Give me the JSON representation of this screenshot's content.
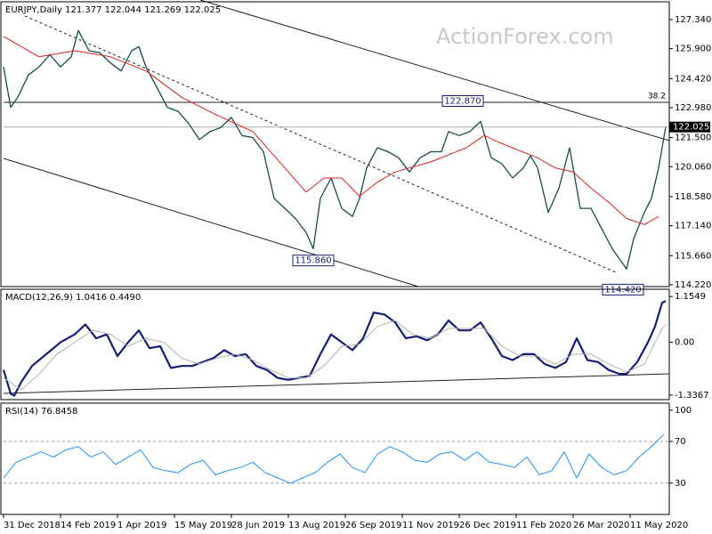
{
  "chart_data": [
    {
      "type": "line",
      "title": "EURJPY,Daily  121.377 122.044 121.269 122.025",
      "watermark": "ActionForex.com",
      "fib_label": "38.2",
      "xlim": [
        0,
        374
      ],
      "ylim": [
        114.13,
        128.22
      ],
      "yticks": [
        {
          "value": 127.34,
          "label": "127.340"
        },
        {
          "value": 125.9,
          "label": "125.900"
        },
        {
          "value": 124.42,
          "label": "124.420"
        },
        {
          "value": 122.98,
          "label": "122.980"
        },
        {
          "value": 121.5,
          "label": "121.500"
        },
        {
          "value": 120.06,
          "label": "120.060"
        },
        {
          "value": 118.58,
          "label": "118.580"
        },
        {
          "value": 117.14,
          "label": "117.140"
        },
        {
          "value": 115.66,
          "label": "115.660"
        },
        {
          "value": 114.22,
          "label": "114.220"
        }
      ],
      "last": {
        "value": 122.025,
        "label": "122.025"
      },
      "annotations": [
        {
          "x": 258,
          "value": 122.87,
          "label": "122.870",
          "pos": "above"
        },
        {
          "x": 174,
          "value": 115.86,
          "label": "115.860",
          "pos": "below"
        },
        {
          "x": 348,
          "value": 114.42,
          "label": "114.420",
          "pos": "below"
        }
      ],
      "series": [
        {
          "color": "#134d4d",
          "width": 1.3,
          "x": [
            0,
            4,
            8,
            14,
            20,
            26,
            32,
            38,
            42,
            48,
            54,
            60,
            66,
            72,
            76,
            80,
            86,
            92,
            98,
            104,
            110,
            116,
            122,
            128,
            134,
            140,
            146,
            152,
            158,
            164,
            170,
            174,
            178,
            184,
            190,
            196,
            200,
            204,
            210,
            216,
            222,
            228,
            234,
            240,
            246,
            250,
            256,
            262,
            268,
            274,
            280,
            286,
            292,
            296,
            300,
            306,
            312,
            318,
            324,
            330,
            336,
            342,
            346,
            350,
            354,
            360,
            364,
            368,
            372
          ],
          "values": [
            125.0,
            123.0,
            123.5,
            124.6,
            125.0,
            125.6,
            125.0,
            125.5,
            126.8,
            125.8,
            125.7,
            125.2,
            124.8,
            125.8,
            126.0,
            125.0,
            124.0,
            123.0,
            122.8,
            122.2,
            121.4,
            121.8,
            122.0,
            122.5,
            121.6,
            121.5,
            120.8,
            118.5,
            118.0,
            117.5,
            116.8,
            116.0,
            118.5,
            119.5,
            118.0,
            117.6,
            118.5,
            120.0,
            121.0,
            120.8,
            120.5,
            119.8,
            120.5,
            120.8,
            120.8,
            121.8,
            121.6,
            121.8,
            122.3,
            120.5,
            120.2,
            119.5,
            120.0,
            120.6,
            120.0,
            117.8,
            119.0,
            121.0,
            118.0,
            118.0,
            117.0,
            116.0,
            115.5,
            115.0,
            116.5,
            117.8,
            118.5,
            120.0,
            122.025
          ]
        },
        {
          "color": "#e0201b",
          "width": 1,
          "x": [
            0,
            20,
            40,
            60,
            80,
            100,
            120,
            140,
            160,
            170,
            180,
            190,
            200,
            210,
            220,
            240,
            260,
            270,
            280,
            300,
            310,
            320,
            330,
            340,
            350,
            360,
            368
          ],
          "values": [
            126.5,
            125.5,
            125.8,
            125.5,
            124.8,
            123.5,
            122.6,
            121.8,
            119.8,
            118.8,
            119.5,
            119.5,
            118.6,
            119.3,
            119.8,
            120.3,
            121.0,
            121.6,
            121.2,
            120.5,
            120.0,
            119.8,
            119.0,
            118.3,
            117.5,
            117.2,
            117.6
          ]
        }
      ]
    },
    {
      "type": "line",
      "title": "MACD(12,26,9) 1.0416 0.4490",
      "xlim": [
        0,
        374
      ],
      "ylim": [
        -1.45,
        1.34
      ],
      "yticks": [
        1.1549,
        {
          "value": 0,
          "label": "0.00"
        },
        -1.3367
      ],
      "series": [
        {
          "color": "#141e7a",
          "width": 2.2,
          "x": [
            0,
            4,
            6,
            10,
            16,
            24,
            32,
            40,
            46,
            52,
            58,
            64,
            70,
            76,
            82,
            88,
            94,
            100,
            106,
            112,
            118,
            124,
            130,
            136,
            142,
            148,
            154,
            160,
            166,
            172,
            178,
            184,
            190,
            196,
            202,
            208,
            214,
            220,
            226,
            232,
            238,
            244,
            250,
            256,
            262,
            268,
            274,
            280,
            286,
            292,
            298,
            304,
            310,
            316,
            322,
            328,
            334,
            340,
            346,
            350,
            356,
            362,
            366,
            370,
            372
          ],
          "values": [
            -0.7,
            -1.3,
            -1.35,
            -1.0,
            -0.6,
            -0.3,
            0.0,
            0.2,
            0.45,
            0.1,
            0.2,
            -0.35,
            0.0,
            0.3,
            -0.15,
            -0.1,
            -0.65,
            -0.6,
            -0.6,
            -0.5,
            -0.4,
            -0.2,
            -0.35,
            -0.3,
            -0.6,
            -0.7,
            -0.9,
            -0.95,
            -0.9,
            -0.85,
            -0.3,
            0.2,
            0.0,
            -0.2,
            0.1,
            0.75,
            0.7,
            0.5,
            0.1,
            0.15,
            0.05,
            0.2,
            0.55,
            0.3,
            0.3,
            0.5,
            0.1,
            -0.35,
            -0.45,
            -0.3,
            -0.3,
            -0.55,
            -0.65,
            -0.5,
            0.1,
            -0.45,
            -0.5,
            -0.7,
            -0.8,
            -0.8,
            -0.5,
            0.0,
            0.4,
            1.0,
            1.0416
          ]
        },
        {
          "color": "#b0b0b0",
          "width": 1,
          "x": [
            0,
            10,
            20,
            30,
            40,
            50,
            60,
            70,
            80,
            90,
            100,
            110,
            120,
            130,
            140,
            150,
            160,
            170,
            180,
            190,
            200,
            210,
            220,
            230,
            240,
            250,
            260,
            270,
            280,
            290,
            300,
            310,
            320,
            330,
            340,
            350,
            360,
            370,
            372
          ],
          "values": [
            -0.9,
            -1.2,
            -0.8,
            -0.3,
            0.0,
            0.3,
            0.2,
            -0.1,
            0.1,
            0.0,
            -0.4,
            -0.55,
            -0.4,
            -0.3,
            -0.45,
            -0.7,
            -0.9,
            -0.9,
            -0.6,
            -0.1,
            -0.05,
            0.4,
            0.55,
            0.2,
            0.1,
            0.35,
            0.35,
            0.35,
            -0.1,
            -0.35,
            -0.35,
            -0.55,
            -0.3,
            -0.3,
            -0.55,
            -0.75,
            -0.55,
            0.35,
            0.449
          ]
        }
      ]
    },
    {
      "type": "line",
      "title": "RSI(14) 76.8458",
      "xlim": [
        0,
        374
      ],
      "ylim": [
        0,
        106.7
      ],
      "yticks": [
        100,
        70,
        30
      ],
      "levels": [
        70,
        30
      ],
      "xticks": [
        {
          "value": 0,
          "label": "31 Dec 2018"
        },
        {
          "value": 32,
          "label": "14 Feb 2019"
        },
        {
          "value": 64,
          "label": "1 Apr 2019"
        },
        {
          "value": 96,
          "label": "15 May 2019"
        },
        {
          "value": 128,
          "label": "28 Jun 2019"
        },
        {
          "value": 160,
          "label": "13 Aug 2019"
        },
        {
          "value": 192,
          "label": "26 Sep 2019"
        },
        {
          "value": 224,
          "label": "11 Nov 2019"
        },
        {
          "value": 256,
          "label": "26 Dec 2019"
        },
        {
          "value": 288,
          "label": "11 Feb 2020"
        },
        {
          "value": 320,
          "label": "26 Mar 2020"
        },
        {
          "value": 352,
          "label": "11 May 2020"
        }
      ],
      "series": [
        {
          "color": "#1e90ff",
          "width": 1,
          "x": [
            0,
            7,
            14,
            21,
            28,
            35,
            42,
            49,
            56,
            63,
            70,
            77,
            84,
            91,
            98,
            105,
            112,
            119,
            126,
            133,
            140,
            147,
            154,
            161,
            168,
            175,
            182,
            189,
            196,
            203,
            210,
            217,
            224,
            231,
            238,
            245,
            252,
            259,
            266,
            273,
            280,
            287,
            294,
            301,
            308,
            315,
            322,
            329,
            336,
            343,
            350,
            357,
            364,
            371
          ],
          "values": [
            35,
            50,
            55,
            60,
            55,
            62,
            65,
            55,
            60,
            48,
            55,
            62,
            45,
            42,
            40,
            48,
            52,
            38,
            42,
            45,
            50,
            40,
            35,
            30,
            35,
            40,
            50,
            58,
            45,
            40,
            58,
            65,
            60,
            52,
            50,
            58,
            60,
            52,
            60,
            50,
            48,
            45,
            55,
            38,
            42,
            60,
            35,
            58,
            45,
            38,
            42,
            55,
            65,
            76.8458
          ]
        }
      ]
    }
  ]
}
